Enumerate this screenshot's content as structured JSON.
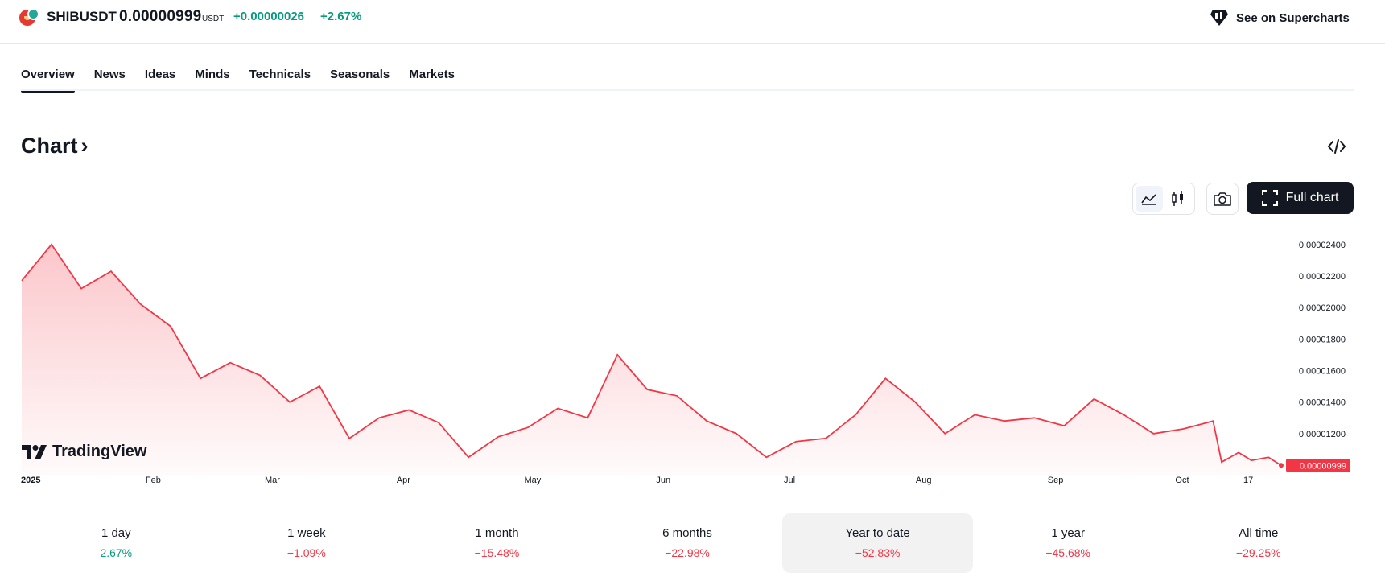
{
  "header": {
    "symbol": "SHIBUSDT",
    "price": "0.00000999",
    "currency": "USDT",
    "change": "+0.00000026",
    "change_pct": "+2.67%",
    "supercharts_label": "See on Supercharts"
  },
  "tabs": [
    {
      "label": "Overview",
      "active": true
    },
    {
      "label": "News"
    },
    {
      "label": "Ideas"
    },
    {
      "label": "Minds"
    },
    {
      "label": "Technicals"
    },
    {
      "label": "Seasonals"
    },
    {
      "label": "Markets"
    }
  ],
  "section": {
    "title": "Chart",
    "chevron": "›"
  },
  "toolbar": {
    "line_icon": "area-chart-icon",
    "candle_icon": "candlestick-icon",
    "snapshot_icon": "camera-icon",
    "embed_icon": "embed-code-icon",
    "full_chart_label": "Full chart"
  },
  "watermark": "TradingView",
  "colors": {
    "line": "#f23645",
    "up": "#089981",
    "down": "#f23645",
    "dark": "#131722"
  },
  "chart_data": {
    "type": "area",
    "series": [
      {
        "x": [
          "2025-01-01",
          "2025-01-08",
          "2025-01-15",
          "2025-01-22",
          "2025-01-29",
          "2025-02-05",
          "2025-02-12",
          "2025-02-19",
          "2025-02-26",
          "2025-03-05",
          "2025-03-12",
          "2025-03-19",
          "2025-03-26",
          "2025-04-02",
          "2025-04-09",
          "2025-04-16",
          "2025-04-23",
          "2025-04-30",
          "2025-05-07",
          "2025-05-14",
          "2025-05-21",
          "2025-05-28",
          "2025-06-04",
          "2025-06-11",
          "2025-06-18",
          "2025-06-25",
          "2025-07-02",
          "2025-07-09",
          "2025-07-16",
          "2025-07-23",
          "2025-07-30",
          "2025-08-06",
          "2025-08-13",
          "2025-08-20",
          "2025-08-27",
          "2025-09-03",
          "2025-09-10",
          "2025-09-17",
          "2025-09-24",
          "2025-10-01",
          "2025-10-08",
          "2025-10-10",
          "2025-10-14",
          "2025-10-17",
          "2025-10-21",
          "2025-10-24"
        ],
        "values": [
          2.17e-05,
          2.4e-05,
          2.12e-05,
          2.23e-05,
          2.02e-05,
          1.88e-05,
          1.55e-05,
          1.65e-05,
          1.57e-05,
          1.4e-05,
          1.5e-05,
          1.17e-05,
          1.3e-05,
          1.35e-05,
          1.27e-05,
          1.05e-05,
          1.18e-05,
          1.24e-05,
          1.36e-05,
          1.3e-05,
          1.7e-05,
          1.48e-05,
          1.44e-05,
          1.28e-05,
          1.2e-05,
          1.05e-05,
          1.15e-05,
          1.17e-05,
          1.32e-05,
          1.55e-05,
          1.4e-05,
          1.2e-05,
          1.32e-05,
          1.28e-05,
          1.3e-05,
          1.25e-05,
          1.42e-05,
          1.32e-05,
          1.2e-05,
          1.23e-05,
          1.28e-05,
          1.02e-05,
          1.08e-05,
          1.03e-05,
          1.05e-05,
          9.99e-06
        ]
      }
    ],
    "x_tick_labels": [
      "2025",
      "Feb",
      "Mar",
      "Apr",
      "May",
      "Jun",
      "Jul",
      "Aug",
      "Sep",
      "Oct",
      "17"
    ],
    "y_tick_labels": [
      "0.00002400",
      "0.00002200",
      "0.00002000",
      "0.00001800",
      "0.00001600",
      "0.00001400",
      "0.00001200"
    ],
    "ylim": [
      9.8e-06,
      2.46e-05
    ],
    "last_value_label": "0.00000999",
    "grid": false
  },
  "periods": [
    {
      "label": "1 day",
      "value": "2.67%",
      "dir": "up"
    },
    {
      "label": "1 week",
      "value": "−1.09%",
      "dir": "down"
    },
    {
      "label": "1 month",
      "value": "−15.48%",
      "dir": "down"
    },
    {
      "label": "6 months",
      "value": "−22.98%",
      "dir": "down"
    },
    {
      "label": "Year to date",
      "value": "−52.83%",
      "dir": "down",
      "active": true
    },
    {
      "label": "1 year",
      "value": "−45.68%",
      "dir": "down"
    },
    {
      "label": "All time",
      "value": "−29.25%",
      "dir": "down"
    }
  ]
}
